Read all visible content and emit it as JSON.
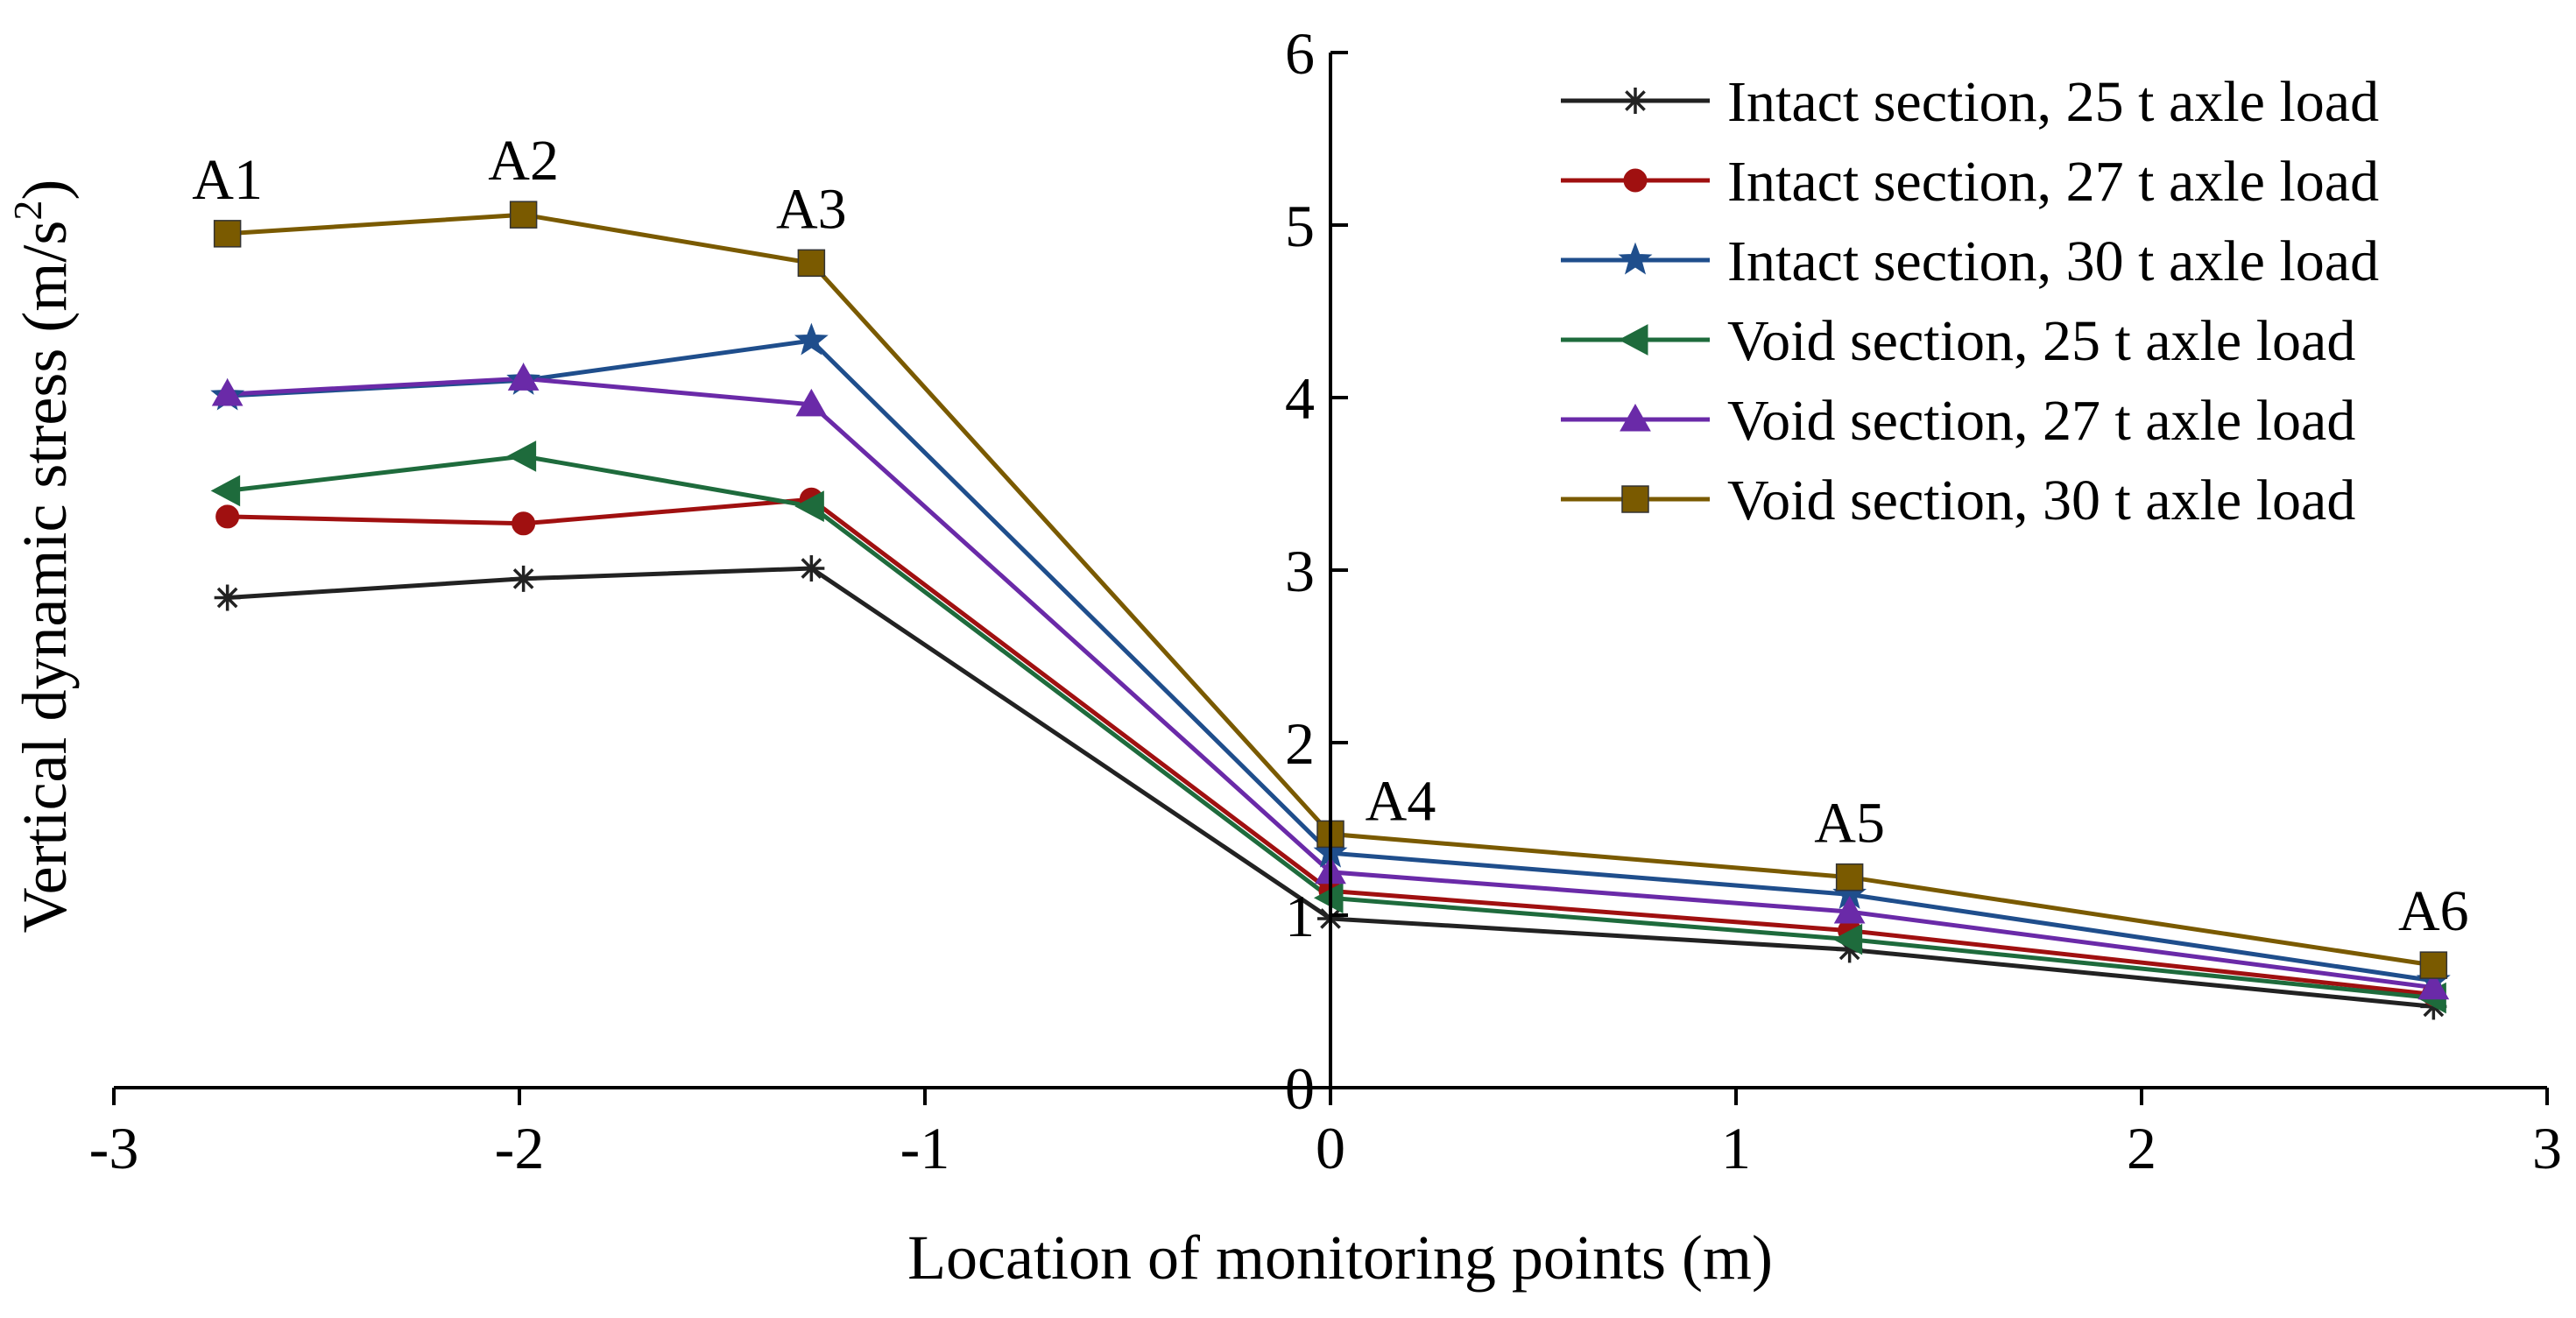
{
  "chart_data": {
    "type": "line",
    "xlabel": "Location of monitoring points (m)",
    "ylabel_main": "Vertical dynamic stress (m/s",
    "ylabel_sup": "2",
    "ylabel_close": ")",
    "xlim": [
      -3,
      3
    ],
    "ylim": [
      0,
      6
    ],
    "x_ticks": [
      -3,
      -2,
      -1,
      0,
      1,
      2,
      3
    ],
    "x_tick_labels": [
      "-3",
      "-2",
      "-1",
      "0",
      "1",
      "2",
      "3"
    ],
    "y_ticks": [
      0,
      1,
      2,
      3,
      4,
      5,
      6
    ],
    "y_tick_labels": [
      "0",
      "1",
      "2",
      "3",
      "4",
      "5",
      "6"
    ],
    "x": [
      -2.72,
      -1.99,
      -1.28,
      0,
      1.28,
      2.72
    ],
    "point_labels": [
      {
        "text": "A1",
        "x": -2.72,
        "y": 4.95
      },
      {
        "text": "A2",
        "x": -1.99,
        "y": 5.06
      },
      {
        "text": "A3",
        "x": -1.28,
        "y": 4.78
      },
      {
        "text": "A4",
        "x": 0,
        "y": 1.47
      },
      {
        "text": "A5",
        "x": 1.28,
        "y": 1.22
      },
      {
        "text": "A6",
        "x": 2.72,
        "y": 0.71
      }
    ],
    "series": [
      {
        "name": "Intact section, 25 t axle load",
        "color": "#222222",
        "marker": "asterisk",
        "values": [
          2.84,
          2.95,
          3.01,
          0.98,
          0.8,
          0.47
        ]
      },
      {
        "name": "Intact section, 27 t axle load",
        "color": "#a01010",
        "marker": "circle",
        "values": [
          3.31,
          3.27,
          3.41,
          1.14,
          0.91,
          0.54
        ]
      },
      {
        "name": "Intact section, 30 t axle load",
        "color": "#1f4e8c",
        "marker": "star",
        "values": [
          4.01,
          4.1,
          4.33,
          1.36,
          1.12,
          0.62
        ]
      },
      {
        "name": "Void section, 25 t axle load",
        "color": "#1e6b3c",
        "marker": "triangle-left",
        "values": [
          3.46,
          3.66,
          3.37,
          1.1,
          0.86,
          0.52
        ]
      },
      {
        "name": "Void section, 27 t axle load",
        "color": "#6a2aa8",
        "marker": "triangle-up",
        "values": [
          4.02,
          4.11,
          3.96,
          1.25,
          1.02,
          0.58
        ]
      },
      {
        "name": "Void section, 30 t axle load",
        "color": "#7a5a00",
        "marker": "square",
        "values": [
          4.95,
          5.06,
          4.78,
          1.47,
          1.22,
          0.71
        ]
      }
    ],
    "legend_position": "top-right",
    "grid": false
  }
}
